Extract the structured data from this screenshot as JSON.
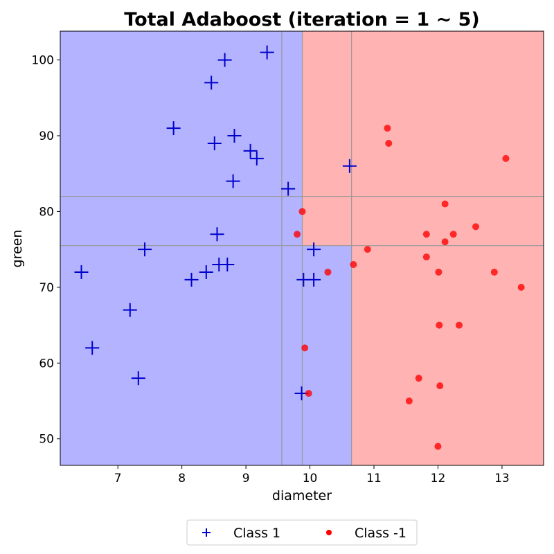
{
  "chart_data": {
    "type": "scatter",
    "title": "Total Adaboost (iteration = 1 ~ 5)",
    "xlabel": "diameter",
    "ylabel": "green",
    "xlim": [
      6.1,
      13.65
    ],
    "ylim": [
      46.5,
      103.8
    ],
    "xticks": [
      7,
      8,
      9,
      10,
      11,
      12,
      13
    ],
    "yticks": [
      50,
      60,
      70,
      80,
      90,
      100
    ],
    "grid": false,
    "legend_position": "bottom-center",
    "regions": [
      {
        "label": "Class 1",
        "color": "#b3b3ff",
        "x_range": [
          6.1,
          9.88
        ],
        "y_range": [
          46.5,
          103.8
        ]
      },
      {
        "label": "Class 1",
        "color": "#b3b3ff",
        "x_range": [
          9.88,
          10.65
        ],
        "y_range": [
          46.5,
          75.5
        ]
      },
      {
        "label": "Class -1",
        "color": "#ffb3b3",
        "x_range": [
          9.88,
          13.65
        ],
        "y_range": [
          75.5,
          103.8
        ]
      },
      {
        "label": "Class -1",
        "color": "#ffb3b3",
        "x_range": [
          10.65,
          13.65
        ],
        "y_range": [
          46.5,
          75.5
        ]
      }
    ],
    "vertical_lines": [
      9.56,
      9.88,
      10.65
    ],
    "horizontal_lines": [
      75.5,
      82.0
    ],
    "series": [
      {
        "name": "Class 1",
        "marker": "plus",
        "color": "#0000cc",
        "points": [
          [
            9.33,
            101
          ],
          [
            8.67,
            100
          ],
          [
            8.46,
            97
          ],
          [
            7.87,
            91
          ],
          [
            8.82,
            90
          ],
          [
            8.51,
            89
          ],
          [
            9.07,
            88
          ],
          [
            9.17,
            87
          ],
          [
            10.62,
            86
          ],
          [
            8.8,
            84
          ],
          [
            9.66,
            83
          ],
          [
            8.55,
            77
          ],
          [
            7.42,
            75
          ],
          [
            10.06,
            75
          ],
          [
            6.43,
            72
          ],
          [
            8.38,
            72
          ],
          [
            8.58,
            73
          ],
          [
            8.71,
            73
          ],
          [
            8.15,
            71
          ],
          [
            9.9,
            71
          ],
          [
            10.06,
            71
          ],
          [
            7.19,
            67
          ],
          [
            6.6,
            62
          ],
          [
            7.32,
            58
          ],
          [
            9.87,
            56
          ]
        ]
      },
      {
        "name": "Class -1",
        "marker": "circle",
        "color": "#ff0000",
        "points": [
          [
            11.21,
            91
          ],
          [
            11.23,
            89
          ],
          [
            13.06,
            87
          ],
          [
            12.11,
            81
          ],
          [
            9.88,
            80
          ],
          [
            12.59,
            78
          ],
          [
            11.82,
            77
          ],
          [
            12.24,
            77
          ],
          [
            9.8,
            77
          ],
          [
            12.11,
            76
          ],
          [
            10.9,
            75
          ],
          [
            11.82,
            74
          ],
          [
            10.68,
            73
          ],
          [
            10.28,
            72
          ],
          [
            12.01,
            72
          ],
          [
            12.88,
            72
          ],
          [
            13.3,
            70
          ],
          [
            12.02,
            65
          ],
          [
            12.33,
            65
          ],
          [
            9.92,
            62
          ],
          [
            11.7,
            58
          ],
          [
            12.03,
            57
          ],
          [
            9.98,
            56
          ],
          [
            11.55,
            55
          ],
          [
            12.0,
            49
          ]
        ]
      }
    ]
  }
}
